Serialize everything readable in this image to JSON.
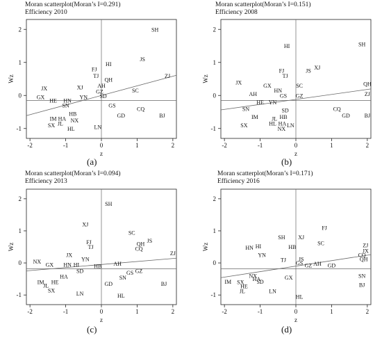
{
  "figure": {
    "charts": [
      {
        "title_line1": "Moran scatterplot(Moran’s I=0.291)",
        "title_line2": "Efficiency 2010",
        "caption": "(a)"
      },
      {
        "title_line1": "Moran scatterplot(Moran’s I=0.151)",
        "title_line2": "Efficiency 2008",
        "caption": "(b)"
      },
      {
        "title_line1": "Moran scatterplot(Moran’s I=0.094)",
        "title_line2": "Efficiency 2013",
        "caption": "(c)"
      },
      {
        "title_line1": "Moran scatterplot(Moran’s I=0.171)",
        "title_line2": "Efficiency 2016",
        "caption": "(d)"
      }
    ]
  },
  "chart_data": [
    {
      "type": "scatter",
      "title": "Moran scatterplot(Moran’s I=0.291)",
      "subtitle": "Efficiency 2010",
      "xlabel": "z",
      "ylabel": "Wz",
      "xlim": [
        -2.1,
        2.1
      ],
      "ylim": [
        -1.3,
        2.3
      ],
      "xticks": [
        -2,
        -1,
        0,
        1,
        2
      ],
      "yticks": [
        -1,
        0,
        1,
        2
      ],
      "fit_line": {
        "intercept": 0.0,
        "slope": 0.291
      },
      "mean_lines": {
        "x": 0,
        "y": -0.15
      },
      "points": [
        {
          "label": "SH",
          "x": 1.5,
          "y": 2.0
        },
        {
          "label": "JS",
          "x": 1.15,
          "y": 1.1
        },
        {
          "label": "HI",
          "x": 0.2,
          "y": 0.95
        },
        {
          "label": "FJ",
          "x": -0.2,
          "y": 0.8
        },
        {
          "label": "TJ",
          "x": -0.15,
          "y": 0.6
        },
        {
          "label": "QH",
          "x": 0.2,
          "y": 0.48
        },
        {
          "label": "ZJ",
          "x": 1.85,
          "y": 0.6
        },
        {
          "label": "XJ",
          "x": -0.6,
          "y": 0.25
        },
        {
          "label": "AH",
          "x": 0.0,
          "y": 0.3
        },
        {
          "label": "GZ",
          "x": -0.05,
          "y": 0.12
        },
        {
          "label": "SD",
          "x": 0.05,
          "y": -0.02
        },
        {
          "label": "SC",
          "x": 0.95,
          "y": 0.15
        },
        {
          "label": "JX",
          "x": -1.6,
          "y": 0.22
        },
        {
          "label": "GX",
          "x": -1.7,
          "y": -0.05
        },
        {
          "label": "HE",
          "x": -1.35,
          "y": -0.15
        },
        {
          "label": "HN",
          "x": -0.95,
          "y": -0.15
        },
        {
          "label": "YN",
          "x": -0.5,
          "y": -0.05
        },
        {
          "label": "SN",
          "x": -1.0,
          "y": -0.3
        },
        {
          "label": "HB",
          "x": -0.8,
          "y": -0.55
        },
        {
          "label": "IM",
          "x": -1.35,
          "y": -0.7
        },
        {
          "label": "HA",
          "x": -1.1,
          "y": -0.7
        },
        {
          "label": "NX",
          "x": -0.75,
          "y": -0.75
        },
        {
          "label": "JL",
          "x": -1.15,
          "y": -0.85
        },
        {
          "label": "SX",
          "x": -1.4,
          "y": -0.9
        },
        {
          "label": "HL",
          "x": -0.85,
          "y": -1.0
        },
        {
          "label": "LN",
          "x": -0.1,
          "y": -0.95
        },
        {
          "label": "GS",
          "x": 0.3,
          "y": -0.3
        },
        {
          "label": "GD",
          "x": 0.55,
          "y": -0.6
        },
        {
          "label": "CQ",
          "x": 1.1,
          "y": -0.4
        },
        {
          "label": "BJ",
          "x": 1.7,
          "y": -0.6
        }
      ]
    },
    {
      "type": "scatter",
      "title": "Moran scatterplot(Moran’s I=0.151)",
      "subtitle": "Efficiency 2008",
      "xlabel": "z",
      "ylabel": "Wz",
      "xlim": [
        -2.1,
        2.1
      ],
      "ylim": [
        -1.3,
        2.3
      ],
      "xticks": [
        -2,
        -1,
        0,
        1,
        2
      ],
      "yticks": [
        -1,
        0,
        1,
        2
      ],
      "fit_line": {
        "intercept": -0.12,
        "slope": 0.151
      },
      "mean_lines": {
        "x": 0,
        "y": -0.15
      },
      "points": [
        {
          "label": "SH",
          "x": 1.85,
          "y": 1.55
        },
        {
          "label": "HI",
          "x": -0.25,
          "y": 1.5
        },
        {
          "label": "XJ",
          "x": 0.6,
          "y": 0.85
        },
        {
          "label": "JS",
          "x": 0.35,
          "y": 0.75
        },
        {
          "label": "FJ",
          "x": -0.4,
          "y": 0.75
        },
        {
          "label": "TJ",
          "x": -0.3,
          "y": 0.6
        },
        {
          "label": "JX",
          "x": -1.6,
          "y": 0.4
        },
        {
          "label": "GX",
          "x": -0.8,
          "y": 0.3
        },
        {
          "label": "HN",
          "x": -0.5,
          "y": 0.15
        },
        {
          "label": "AH",
          "x": -1.2,
          "y": 0.05
        },
        {
          "label": "GS",
          "x": -0.35,
          "y": 0.0
        },
        {
          "label": "SC",
          "x": 0.1,
          "y": 0.3
        },
        {
          "label": "GZ",
          "x": 0.1,
          "y": 0.0
        },
        {
          "label": "QH",
          "x": 2.0,
          "y": 0.35
        },
        {
          "label": "ZJ",
          "x": 2.0,
          "y": 0.05
        },
        {
          "label": "HE",
          "x": -1.0,
          "y": -0.2
        },
        {
          "label": "YN",
          "x": -0.65,
          "y": -0.2
        },
        {
          "label": "SN",
          "x": -1.4,
          "y": -0.4
        },
        {
          "label": "SD",
          "x": -0.3,
          "y": -0.45
        },
        {
          "label": "IM",
          "x": -1.15,
          "y": -0.65
        },
        {
          "label": "HB",
          "x": -0.35,
          "y": -0.65
        },
        {
          "label": "JL",
          "x": -0.6,
          "y": -0.7
        },
        {
          "label": "SX",
          "x": -1.45,
          "y": -0.9
        },
        {
          "label": "HL",
          "x": -0.65,
          "y": -0.85
        },
        {
          "label": "HA",
          "x": -0.38,
          "y": -0.85
        },
        {
          "label": "LN",
          "x": -0.15,
          "y": -0.9
        },
        {
          "label": "NX",
          "x": -0.4,
          "y": -1.0
        },
        {
          "label": "CQ",
          "x": 1.15,
          "y": -0.4
        },
        {
          "label": "GD",
          "x": 1.4,
          "y": -0.6
        },
        {
          "label": "BJ",
          "x": 2.0,
          "y": -0.6
        }
      ]
    },
    {
      "type": "scatter",
      "title": "Moran scatterplot(Moran’s I=0.094)",
      "subtitle": "Efficiency 2013",
      "xlabel": "z",
      "ylabel": "Wz",
      "xlim": [
        -2.1,
        2.1
      ],
      "ylim": [
        -1.3,
        2.3
      ],
      "xticks": [
        -2,
        -1,
        0,
        1,
        2
      ],
      "yticks": [
        -1,
        0,
        1,
        2
      ],
      "fit_line": {
        "intercept": -0.05,
        "slope": 0.094
      },
      "mean_lines": {
        "x": 0,
        "y": -0.18
      },
      "points": [
        {
          "label": "SH",
          "x": 0.2,
          "y": 1.85
        },
        {
          "label": "XJ",
          "x": -0.45,
          "y": 1.2
        },
        {
          "label": "SC",
          "x": 0.85,
          "y": 0.95
        },
        {
          "label": "JS",
          "x": 1.35,
          "y": 0.7
        },
        {
          "label": "QH",
          "x": 1.1,
          "y": 0.6
        },
        {
          "label": "CQ",
          "x": 1.05,
          "y": 0.45
        },
        {
          "label": "FJ",
          "x": -0.35,
          "y": 0.65
        },
        {
          "label": "TJ",
          "x": -0.3,
          "y": 0.5
        },
        {
          "label": "ZJ",
          "x": 2.0,
          "y": 0.3
        },
        {
          "label": "JX",
          "x": -0.9,
          "y": 0.25
        },
        {
          "label": "YN",
          "x": -0.45,
          "y": 0.12
        },
        {
          "label": "NX",
          "x": -1.8,
          "y": 0.05
        },
        {
          "label": "GX",
          "x": -1.45,
          "y": -0.05
        },
        {
          "label": "HN",
          "x": -0.95,
          "y": -0.05
        },
        {
          "label": "HI",
          "x": -0.7,
          "y": -0.05
        },
        {
          "label": "HB",
          "x": -0.1,
          "y": -0.1
        },
        {
          "label": "AH",
          "x": 0.45,
          "y": -0.02
        },
        {
          "label": "SD",
          "x": -0.6,
          "y": -0.25
        },
        {
          "label": "HA",
          "x": -1.05,
          "y": -0.42
        },
        {
          "label": "GS",
          "x": 0.8,
          "y": -0.3
        },
        {
          "label": "GZ",
          "x": 1.05,
          "y": -0.25
        },
        {
          "label": "SN",
          "x": 0.6,
          "y": -0.45
        },
        {
          "label": "IM",
          "x": -1.7,
          "y": -0.6
        },
        {
          "label": "HE",
          "x": -1.3,
          "y": -0.6
        },
        {
          "label": "JL",
          "x": -1.55,
          "y": -0.7
        },
        {
          "label": "SX",
          "x": -1.4,
          "y": -0.85
        },
        {
          "label": "LN",
          "x": -0.6,
          "y": -0.95
        },
        {
          "label": "GD",
          "x": 0.2,
          "y": -0.65
        },
        {
          "label": "HL",
          "x": 0.55,
          "y": -1.02
        },
        {
          "label": "BJ",
          "x": 1.75,
          "y": -0.65
        }
      ]
    },
    {
      "type": "scatter",
      "title": "Moran scatterplot(Moran’s I=0.171)",
      "subtitle": "Efficiency 2016",
      "xlabel": "z",
      "ylabel": "Wz",
      "xlim": [
        -2.1,
        2.1
      ],
      "ylim": [
        -1.3,
        2.3
      ],
      "xticks": [
        -2,
        -1,
        0,
        1,
        2
      ],
      "yticks": [
        -1,
        0,
        1,
        2
      ],
      "fit_line": {
        "intercept": -0.1,
        "slope": 0.171
      },
      "mean_lines": {
        "x": 0,
        "y": -0.18
      },
      "points": [
        {
          "label": "FJ",
          "x": 0.8,
          "y": 1.1
        },
        {
          "label": "SH",
          "x": -0.4,
          "y": 0.8
        },
        {
          "label": "XJ",
          "x": 0.15,
          "y": 0.8
        },
        {
          "label": "SC",
          "x": 0.7,
          "y": 0.62
        },
        {
          "label": "HB",
          "x": -0.1,
          "y": 0.5
        },
        {
          "label": "HN",
          "x": -1.3,
          "y": 0.48
        },
        {
          "label": "HI",
          "x": -1.05,
          "y": 0.52
        },
        {
          "label": "YN",
          "x": -0.95,
          "y": 0.25
        },
        {
          "label": "ZJ",
          "x": 1.95,
          "y": 0.55
        },
        {
          "label": "JX",
          "x": 1.95,
          "y": 0.38
        },
        {
          "label": "CQ",
          "x": 1.85,
          "y": 0.25
        },
        {
          "label": "QH",
          "x": 1.9,
          "y": 0.12
        },
        {
          "label": "TJ",
          "x": -0.35,
          "y": 0.1
        },
        {
          "label": "JS",
          "x": 0.15,
          "y": 0.12
        },
        {
          "label": "GS",
          "x": 0.1,
          "y": 0.0
        },
        {
          "label": "GZ",
          "x": 0.35,
          "y": -0.08
        },
        {
          "label": "AH",
          "x": 0.6,
          "y": -0.02
        },
        {
          "label": "GD",
          "x": 1.0,
          "y": -0.08
        },
        {
          "label": "GX",
          "x": -0.2,
          "y": -0.45
        },
        {
          "label": "NX",
          "x": -1.2,
          "y": -0.4
        },
        {
          "label": "HA",
          "x": -1.1,
          "y": -0.5
        },
        {
          "label": "SX",
          "x": -1.55,
          "y": -0.6
        },
        {
          "label": "SD",
          "x": -1.0,
          "y": -0.58
        },
        {
          "label": "IM",
          "x": -1.9,
          "y": -0.58
        },
        {
          "label": "HE",
          "x": -1.45,
          "y": -0.72
        },
        {
          "label": "JL",
          "x": -1.5,
          "y": -0.88
        },
        {
          "label": "LN",
          "x": -0.65,
          "y": -0.88
        },
        {
          "label": "HL",
          "x": 0.1,
          "y": -1.05
        },
        {
          "label": "SN",
          "x": 1.85,
          "y": -0.4
        },
        {
          "label": "BJ",
          "x": 1.85,
          "y": -0.68
        }
      ]
    }
  ]
}
